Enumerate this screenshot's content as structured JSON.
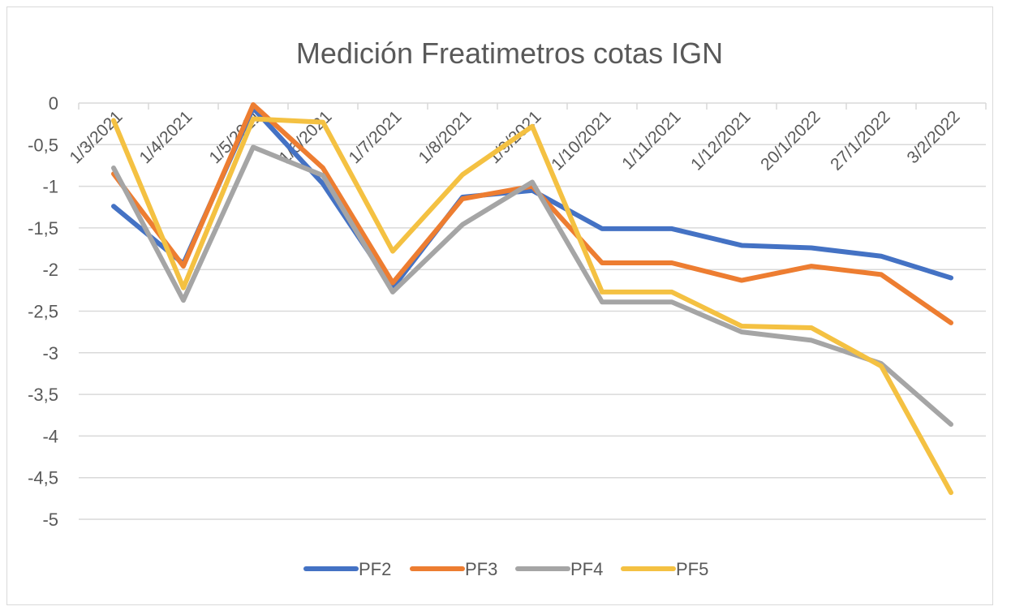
{
  "chart_data": {
    "type": "line",
    "title": "Medición Freatimetros cotas IGN",
    "xlabel": "",
    "ylabel": "",
    "ylim": [
      -5,
      0
    ],
    "yticks": [
      0,
      -0.5,
      -1,
      -1.5,
      -2,
      -2.5,
      -3,
      -3.5,
      -4,
      -4.5,
      -5
    ],
    "ytick_labels": [
      "0",
      "-0,5",
      "-1",
      "-1,5",
      "-2",
      "-2,5",
      "-3",
      "-3,5",
      "-4",
      "-4,5",
      "-5"
    ],
    "grid": true,
    "legend_position": "bottom",
    "categories": [
      "1/3/2021",
      "1/4/2021",
      "1/5/2021",
      "1/6/2021",
      "1/7/2021",
      "1/8/2021",
      "1/9/2021",
      "1/10/2021",
      "1/11/2021",
      "1/12/2021",
      "20/1/2022",
      "27/1/2022",
      "3/2/2022"
    ],
    "series": [
      {
        "name": "PF2",
        "color": "#4472C4",
        "values": [
          -1.24,
          -1.93,
          -0.06,
          -0.97,
          -2.22,
          -1.13,
          -1.05,
          -1.51,
          -1.51,
          -1.71,
          -1.74,
          -1.84,
          -2.1
        ]
      },
      {
        "name": "PF3",
        "color": "#ED7D31",
        "values": [
          -0.85,
          -1.96,
          -0.02,
          -0.78,
          -2.16,
          -1.15,
          -1.0,
          -1.92,
          -1.92,
          -2.13,
          -1.96,
          -2.06,
          -2.64
        ]
      },
      {
        "name": "PF4",
        "color": "#A5A5A5",
        "values": [
          -0.78,
          -2.37,
          -0.53,
          -0.87,
          -2.27,
          -1.46,
          -0.95,
          -2.39,
          -2.39,
          -2.75,
          -2.85,
          -3.13,
          -3.86
        ]
      },
      {
        "name": "PF5",
        "color": "#F4C142",
        "values": [
          -0.21,
          -2.22,
          -0.19,
          -0.23,
          -1.78,
          -0.86,
          -0.28,
          -2.27,
          -2.27,
          -2.68,
          -2.7,
          -3.16,
          -4.68
        ]
      }
    ]
  }
}
